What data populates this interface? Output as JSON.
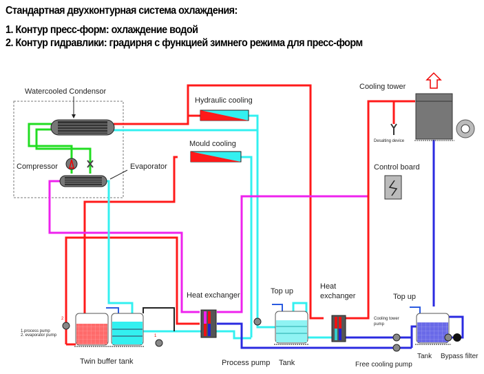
{
  "header": {
    "title": "Стандартная двухконтурная система охлаждения:",
    "line1": "1. Контур пресс-форм: охлаждение водой",
    "line2": "2. Контур гидравлики: градирня с функцией зимнего режима для пресс-форм"
  },
  "labels": {
    "condensor": "Watercooled Condensor",
    "compressor": "Compressor",
    "evaporator": "Evaporator",
    "hydraulic_cooling": "Hydraulic cooling",
    "mould_cooling": "Mould cooling",
    "cooling_tower": "Cooling tower",
    "desalting": "Desalting device",
    "control_board": "Control board",
    "heat_exchanger_1": "Heat exchanger",
    "heat_exchanger_2_a": "Heat",
    "heat_exchanger_2_b": "exchanger",
    "top_up_1": "Top up",
    "top_up_2": "Top up",
    "pump_legend_1": "1.process pump",
    "pump_legend_2": "2. evaporator pump",
    "pump_num_1": "1",
    "pump_num_2": "2",
    "twin_buffer_tank": "Twin buffer tank",
    "process_pump": "Process pump",
    "tank_1": "Tank",
    "cooling_tower_pump_a": "Cooling tower",
    "cooling_tower_pump_b": "pump",
    "free_cooling_pump": "Free cooling pump",
    "tank_2": "Tank",
    "bypass_filter": "Bypass filter"
  },
  "colors": {
    "hot": "#ff1a1a",
    "cold": "#33f0f0",
    "refrigerant": "#22dd22",
    "return": "#ee22ee",
    "tower_water": "#2a2ae0",
    "equipment": "#707070"
  }
}
